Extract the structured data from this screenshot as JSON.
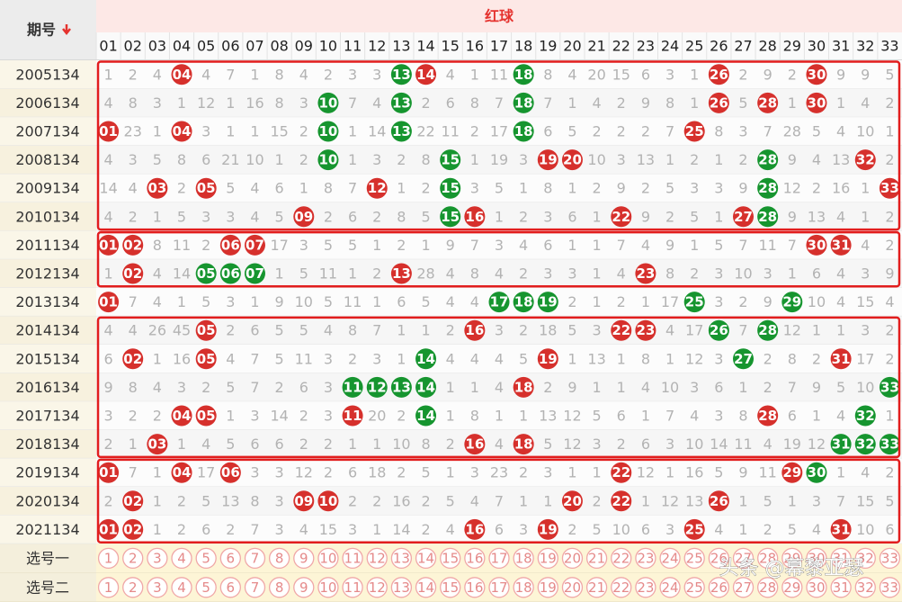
{
  "header": {
    "period": "期号",
    "red_ball": "红球",
    "columns": [
      "01",
      "02",
      "03",
      "04",
      "05",
      "06",
      "07",
      "08",
      "09",
      "10",
      "11",
      "12",
      "13",
      "14",
      "15",
      "16",
      "17",
      "18",
      "19",
      "20",
      "21",
      "22",
      "23",
      "24",
      "25",
      "26",
      "27",
      "28",
      "29",
      "30",
      "31",
      "32",
      "33"
    ]
  },
  "ball_colors": {
    "red": "#d6302c",
    "green": "#16952f"
  },
  "rows": [
    {
      "period": "2005134",
      "cells": [
        1,
        2,
        4,
        {
          "ball": "04",
          "color": "red"
        },
        4,
        7,
        1,
        8,
        4,
        2,
        3,
        3,
        {
          "ball": "13",
          "color": "green"
        },
        {
          "ball": "14",
          "color": "red"
        },
        4,
        1,
        11,
        {
          "ball": "18",
          "color": "green"
        },
        8,
        4,
        20,
        15,
        6,
        3,
        1,
        {
          "ball": "26",
          "color": "red"
        },
        2,
        9,
        2,
        {
          "ball": "30",
          "color": "red"
        },
        9,
        9,
        5
      ]
    },
    {
      "period": "2006134",
      "cells": [
        4,
        8,
        3,
        1,
        12,
        1,
        16,
        8,
        3,
        {
          "ball": "10",
          "color": "green"
        },
        7,
        4,
        {
          "ball": "13",
          "color": "green"
        },
        2,
        6,
        8,
        7,
        {
          "ball": "18",
          "color": "green"
        },
        7,
        1,
        4,
        2,
        9,
        8,
        1,
        {
          "ball": "26",
          "color": "red"
        },
        5,
        {
          "ball": "28",
          "color": "red"
        },
        1,
        {
          "ball": "30",
          "color": "red"
        },
        1,
        4,
        2
      ]
    },
    {
      "period": "2007134",
      "cells": [
        {
          "ball": "01",
          "color": "red"
        },
        23,
        1,
        {
          "ball": "04",
          "color": "red"
        },
        3,
        1,
        1,
        15,
        2,
        {
          "ball": "10",
          "color": "green"
        },
        1,
        14,
        {
          "ball": "13",
          "color": "green"
        },
        22,
        11,
        2,
        17,
        {
          "ball": "18",
          "color": "green"
        },
        6,
        5,
        2,
        2,
        2,
        7,
        {
          "ball": "25",
          "color": "red"
        },
        8,
        3,
        7,
        28,
        5,
        4,
        10,
        1
      ]
    },
    {
      "period": "2008134",
      "cells": [
        4,
        3,
        5,
        8,
        6,
        21,
        10,
        1,
        2,
        {
          "ball": "10",
          "color": "green"
        },
        1,
        3,
        2,
        8,
        {
          "ball": "15",
          "color": "green"
        },
        1,
        19,
        3,
        {
          "ball": "19",
          "color": "red"
        },
        {
          "ball": "20",
          "color": "red"
        },
        10,
        3,
        13,
        1,
        2,
        1,
        2,
        {
          "ball": "28",
          "color": "green"
        },
        9,
        4,
        13,
        {
          "ball": "32",
          "color": "red"
        },
        2
      ]
    },
    {
      "period": "2009134",
      "cells": [
        14,
        4,
        {
          "ball": "03",
          "color": "red"
        },
        2,
        {
          "ball": "05",
          "color": "red"
        },
        5,
        4,
        6,
        1,
        8,
        7,
        {
          "ball": "12",
          "color": "red"
        },
        1,
        2,
        {
          "ball": "15",
          "color": "green"
        },
        3,
        5,
        1,
        8,
        1,
        2,
        9,
        2,
        5,
        3,
        3,
        9,
        {
          "ball": "28",
          "color": "green"
        },
        12,
        2,
        16,
        1,
        {
          "ball": "33",
          "color": "red"
        }
      ]
    },
    {
      "period": "2010134",
      "cells": [
        4,
        2,
        1,
        5,
        3,
        3,
        4,
        5,
        {
          "ball": "09",
          "color": "red"
        },
        2,
        6,
        2,
        8,
        5,
        {
          "ball": "15",
          "color": "green"
        },
        {
          "ball": "16",
          "color": "red"
        },
        1,
        2,
        3,
        6,
        1,
        {
          "ball": "22",
          "color": "red"
        },
        9,
        2,
        5,
        1,
        {
          "ball": "27",
          "color": "red"
        },
        {
          "ball": "28",
          "color": "green"
        },
        9,
        13,
        4,
        1,
        2
      ]
    },
    {
      "period": "2011134",
      "cells": [
        {
          "ball": "01",
          "color": "red"
        },
        {
          "ball": "02",
          "color": "red"
        },
        8,
        11,
        2,
        {
          "ball": "06",
          "color": "red"
        },
        {
          "ball": "07",
          "color": "red"
        },
        17,
        3,
        5,
        5,
        1,
        2,
        1,
        9,
        7,
        3,
        4,
        6,
        1,
        1,
        7,
        4,
        9,
        1,
        5,
        7,
        11,
        7,
        {
          "ball": "30",
          "color": "red"
        },
        {
          "ball": "31",
          "color": "red"
        },
        4,
        2
      ]
    },
    {
      "period": "2012134",
      "cells": [
        1,
        {
          "ball": "02",
          "color": "red"
        },
        4,
        14,
        {
          "ball": "05",
          "color": "green"
        },
        {
          "ball": "06",
          "color": "green"
        },
        {
          "ball": "07",
          "color": "green"
        },
        1,
        5,
        11,
        1,
        2,
        {
          "ball": "13",
          "color": "red"
        },
        28,
        4,
        8,
        4,
        2,
        3,
        3,
        1,
        4,
        {
          "ball": "23",
          "color": "red"
        },
        8,
        2,
        3,
        10,
        3,
        1,
        6,
        4,
        3,
        9
      ]
    },
    {
      "period": "2013134",
      "cells": [
        {
          "ball": "01",
          "color": "red"
        },
        7,
        4,
        1,
        5,
        3,
        1,
        9,
        10,
        5,
        11,
        1,
        6,
        5,
        4,
        4,
        {
          "ball": "17",
          "color": "green"
        },
        {
          "ball": "18",
          "color": "green"
        },
        {
          "ball": "19",
          "color": "green"
        },
        2,
        1,
        2,
        1,
        17,
        {
          "ball": "25",
          "color": "green"
        },
        3,
        2,
        9,
        {
          "ball": "29",
          "color": "green"
        },
        10,
        4,
        15,
        4
      ]
    },
    {
      "period": "2014134",
      "cells": [
        4,
        4,
        26,
        45,
        {
          "ball": "05",
          "color": "red"
        },
        2,
        6,
        5,
        5,
        4,
        8,
        7,
        1,
        1,
        2,
        {
          "ball": "16",
          "color": "red"
        },
        3,
        2,
        18,
        5,
        3,
        {
          "ball": "22",
          "color": "red"
        },
        {
          "ball": "23",
          "color": "red"
        },
        4,
        17,
        {
          "ball": "26",
          "color": "green"
        },
        7,
        {
          "ball": "28",
          "color": "green"
        },
        12,
        1,
        1,
        3,
        2
      ]
    },
    {
      "period": "2015134",
      "cells": [
        6,
        {
          "ball": "02",
          "color": "red"
        },
        1,
        16,
        {
          "ball": "05",
          "color": "red"
        },
        4,
        7,
        5,
        11,
        3,
        2,
        3,
        1,
        {
          "ball": "14",
          "color": "green"
        },
        4,
        4,
        4,
        5,
        {
          "ball": "19",
          "color": "red"
        },
        1,
        13,
        1,
        8,
        1,
        12,
        3,
        {
          "ball": "27",
          "color": "green"
        },
        2,
        8,
        2,
        {
          "ball": "31",
          "color": "red"
        },
        17,
        2
      ]
    },
    {
      "period": "2016134",
      "cells": [
        9,
        8,
        4,
        3,
        2,
        5,
        7,
        2,
        6,
        3,
        {
          "ball": "11",
          "color": "green"
        },
        {
          "ball": "12",
          "color": "green"
        },
        {
          "ball": "13",
          "color": "green"
        },
        {
          "ball": "14",
          "color": "green"
        },
        1,
        1,
        4,
        {
          "ball": "18",
          "color": "red"
        },
        2,
        9,
        1,
        1,
        4,
        10,
        3,
        6,
        1,
        2,
        7,
        9,
        5,
        10,
        {
          "ball": "33",
          "color": "green"
        }
      ]
    },
    {
      "period": "2017134",
      "cells": [
        3,
        2,
        2,
        {
          "ball": "04",
          "color": "red"
        },
        {
          "ball": "05",
          "color": "red"
        },
        1,
        3,
        14,
        2,
        3,
        {
          "ball": "11",
          "color": "red"
        },
        20,
        2,
        {
          "ball": "14",
          "color": "green"
        },
        1,
        8,
        1,
        1,
        13,
        12,
        5,
        6,
        1,
        7,
        4,
        3,
        8,
        {
          "ball": "28",
          "color": "red"
        },
        6,
        1,
        4,
        {
          "ball": "32",
          "color": "green"
        },
        1
      ]
    },
    {
      "period": "2018134",
      "cells": [
        2,
        1,
        {
          "ball": "03",
          "color": "red"
        },
        1,
        4,
        5,
        6,
        6,
        2,
        2,
        1,
        1,
        10,
        8,
        2,
        {
          "ball": "16",
          "color": "red"
        },
        4,
        {
          "ball": "18",
          "color": "red"
        },
        5,
        12,
        3,
        2,
        6,
        3,
        10,
        14,
        11,
        4,
        19,
        12,
        {
          "ball": "31",
          "color": "green"
        },
        {
          "ball": "32",
          "color": "green"
        },
        {
          "ball": "33",
          "color": "green"
        }
      ]
    },
    {
      "period": "2019134",
      "cells": [
        {
          "ball": "01",
          "color": "red"
        },
        7,
        1,
        {
          "ball": "04",
          "color": "red"
        },
        17,
        {
          "ball": "06",
          "color": "red"
        },
        3,
        3,
        12,
        2,
        6,
        18,
        2,
        5,
        1,
        3,
        23,
        2,
        3,
        1,
        1,
        {
          "ball": "22",
          "color": "red"
        },
        12,
        1,
        16,
        5,
        9,
        11,
        {
          "ball": "29",
          "color": "red"
        },
        {
          "ball": "30",
          "color": "green"
        },
        1,
        4,
        2
      ]
    },
    {
      "period": "2020134",
      "cells": [
        2,
        {
          "ball": "02",
          "color": "red"
        },
        1,
        2,
        5,
        13,
        8,
        3,
        {
          "ball": "09",
          "color": "red"
        },
        {
          "ball": "10",
          "color": "red"
        },
        2,
        2,
        16,
        2,
        5,
        4,
        7,
        1,
        1,
        {
          "ball": "20",
          "color": "red"
        },
        2,
        {
          "ball": "22",
          "color": "red"
        },
        1,
        12,
        13,
        {
          "ball": "26",
          "color": "red"
        },
        1,
        5,
        1,
        3,
        7,
        15,
        5
      ]
    },
    {
      "period": "2021134",
      "cells": [
        {
          "ball": "01",
          "color": "red"
        },
        {
          "ball": "02",
          "color": "red"
        },
        1,
        2,
        6,
        2,
        7,
        3,
        4,
        15,
        3,
        1,
        14,
        2,
        4,
        {
          "ball": "16",
          "color": "red"
        },
        6,
        3,
        {
          "ball": "19",
          "color": "red"
        },
        2,
        5,
        10,
        6,
        3,
        {
          "ball": "25",
          "color": "red"
        },
        4,
        1,
        2,
        5,
        4,
        {
          "ball": "31",
          "color": "red"
        },
        10,
        6
      ]
    }
  ],
  "select_rows": [
    {
      "label": "选号一",
      "numbers": [
        1,
        2,
        3,
        4,
        5,
        6,
        7,
        8,
        9,
        10,
        11,
        12,
        13,
        14,
        15,
        16,
        17,
        18,
        19,
        20,
        21,
        22,
        23,
        24,
        25,
        26,
        27,
        28,
        29,
        30,
        31,
        32,
        33
      ]
    },
    {
      "label": "选号二",
      "numbers": [
        1,
        2,
        3,
        4,
        5,
        6,
        7,
        8,
        9,
        10,
        11,
        12,
        13,
        14,
        15,
        16,
        17,
        18,
        19,
        20,
        21,
        22,
        23,
        24,
        25,
        26,
        27,
        28,
        29,
        30,
        31,
        32,
        33
      ]
    }
  ],
  "watermark": "头条 @幕黎亚瑟"
}
